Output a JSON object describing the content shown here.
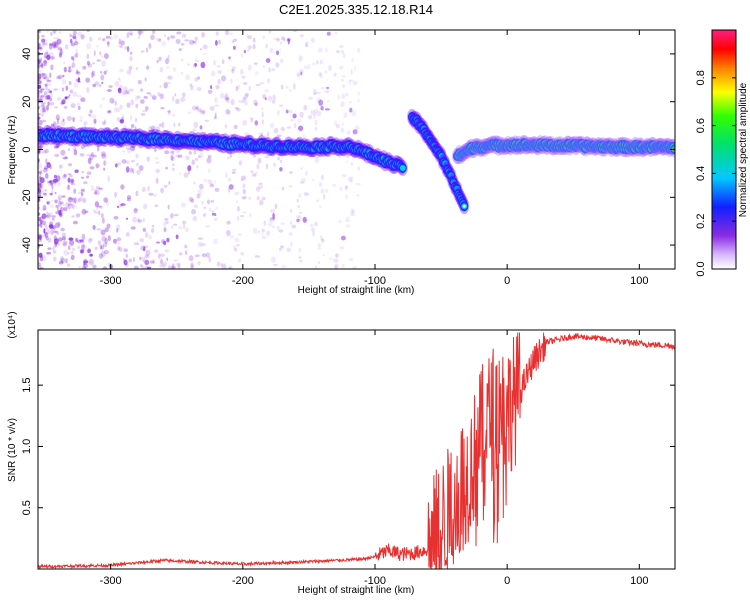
{
  "title": "C2E1.2025.335.12.18.R14",
  "colors": {
    "signal": "#e83030",
    "scatter": "#8a2be2",
    "axis": "#000000"
  },
  "chart_data": [
    {
      "type": "heatmap",
      "title": "C2E1.2025.335.12.18.R14",
      "xlabel": "Height of straight line (km)",
      "ylabel": "Frequency (Hz)",
      "xlim": [
        -355,
        127
      ],
      "ylim": [
        -50,
        50
      ],
      "xticks": [
        -300,
        -200,
        -100,
        0,
        100
      ],
      "yticks": [
        -40,
        -20,
        0,
        20,
        40
      ],
      "xtick_labels": [
        "-300",
        "-200",
        "-100",
        "0",
        "100"
      ],
      "ytick_labels": [
        "-40",
        "-20",
        "0",
        "20",
        "40"
      ],
      "colorbar": {
        "label": "Normalized spectral amplitude",
        "range": [
          0,
          1
        ],
        "ticks": [
          0.0,
          0.2,
          0.4,
          0.6,
          0.8
        ],
        "tick_labels": [
          "0.0",
          "0.2",
          "0.4",
          "0.6",
          "0.8"
        ]
      },
      "ridge": {
        "description_points": [
          {
            "x": -350,
            "y": 6.0
          },
          {
            "x": -300,
            "y": 5.0
          },
          {
            "x": -250,
            "y": 4.0
          },
          {
            "x": -200,
            "y": 2.0
          },
          {
            "x": -150,
            "y": 1.0
          },
          {
            "x": -120,
            "y": 1.5
          },
          {
            "x": -100,
            "y": -3.0
          },
          {
            "x": -78,
            "y": -8.0
          }
        ],
        "amplitude": 0.65
      },
      "upper_branch": [
        {
          "x": -72,
          "y": 14.0
        },
        {
          "x": -60,
          "y": 6.0
        },
        {
          "x": -50,
          "y": -3.0
        },
        {
          "x": -42,
          "y": -12.0
        },
        {
          "x": -32,
          "y": -24.0
        }
      ],
      "right_ridge": [
        {
          "x": -38,
          "y": -3.0
        },
        {
          "x": -25,
          "y": 1.0
        },
        {
          "x": 0,
          "y": 2.0
        },
        {
          "x": 50,
          "y": 1.5
        },
        {
          "x": 90,
          "y": 1.0
        },
        {
          "x": 127,
          "y": 1.0
        }
      ]
    },
    {
      "type": "line",
      "xlabel": "Height of straight line (km)",
      "ylabel": "SNR (10 * v/v)",
      "y_scale_label": "(x10⁴)",
      "xlim": [
        -355,
        127
      ],
      "ylim": [
        0,
        1.95
      ],
      "xticks": [
        -300,
        -200,
        -100,
        0,
        100
      ],
      "yticks": [
        0.5,
        1.0,
        1.5
      ],
      "xtick_labels": [
        "-300",
        "-200",
        "-100",
        "0",
        "100"
      ],
      "ytick_labels": [
        "0.5",
        "1.0",
        "1.5"
      ],
      "series": [
        {
          "name": "SNR",
          "x": [
            -355,
            -300,
            -260,
            -200,
            -150,
            -110,
            -100,
            -90,
            -80,
            -70,
            -60,
            -55,
            -50,
            -45,
            -40,
            -35,
            -30,
            -25,
            -20,
            -15,
            -10,
            -5,
            0,
            10,
            20,
            30,
            50,
            70,
            90,
            110,
            127
          ],
          "y": [
            0.02,
            0.03,
            0.07,
            0.04,
            0.06,
            0.08,
            0.1,
            0.15,
            0.12,
            0.13,
            0.16,
            0.25,
            0.35,
            0.45,
            0.6,
            0.7,
            0.75,
            0.9,
            1.1,
            1.2,
            1.3,
            1.35,
            1.3,
            1.45,
            1.7,
            1.85,
            1.9,
            1.88,
            1.85,
            1.83,
            1.82
          ]
        }
      ]
    }
  ]
}
